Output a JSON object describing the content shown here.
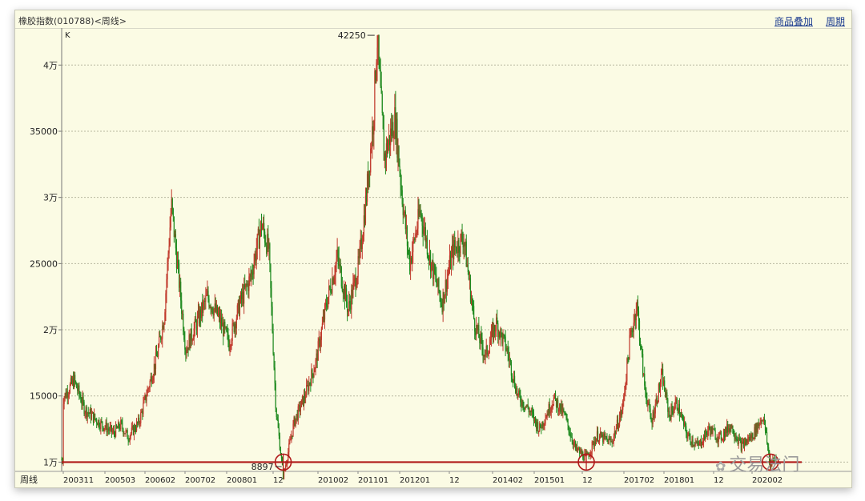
{
  "header": {
    "title": "橡胶指数(010788)<周线>",
    "links": [
      "商品叠加",
      "周期"
    ]
  },
  "watermark": "交易法门",
  "chart_data": {
    "type": "candlestick",
    "title": "橡胶指数(010788)<周线>",
    "unit_label": "K",
    "period_label": "周线",
    "ylim": [
      9300,
      42800
    ],
    "y_ticks": [
      {
        "value": 10000,
        "label": "1万"
      },
      {
        "value": 15000,
        "label": "15000"
      },
      {
        "value": 20000,
        "label": "2万"
      },
      {
        "value": 25000,
        "label": "25000"
      },
      {
        "value": 30000,
        "label": "3万"
      },
      {
        "value": 35000,
        "label": "35000"
      },
      {
        "value": 40000,
        "label": "4万"
      }
    ],
    "x_ticks": [
      "200311",
      "200503",
      "200602",
      "200702",
      "200801",
      "12",
      "201002",
      "201101",
      "201201",
      "12",
      "201402",
      "201501",
      "12",
      "201702",
      "201801",
      "12",
      "202002"
    ],
    "grid": true,
    "annotations": [
      {
        "text": "42250",
        "value": 42250,
        "kind": "high"
      },
      {
        "text": "8897",
        "value": 8897,
        "kind": "low"
      }
    ],
    "support_level": 10000,
    "support_markers": [
      "2008-12 low",
      "2015-12 low",
      "2020-03 low"
    ],
    "colors": {
      "up": "#c0392b",
      "down": "#1f8a1f",
      "support": "#b01818",
      "grid": "#b8b8a0"
    },
    "weekly_close_points": [
      {
        "x": "2003-11",
        "y": 14800
      },
      {
        "x": "2004-02",
        "y": 16200
      },
      {
        "x": "2004-05",
        "y": 14000
      },
      {
        "x": "2004-09",
        "y": 13000
      },
      {
        "x": "2005-01",
        "y": 12200
      },
      {
        "x": "2005-03",
        "y": 12800
      },
      {
        "x": "2005-05",
        "y": 11900
      },
      {
        "x": "2005-08",
        "y": 13000
      },
      {
        "x": "2005-11",
        "y": 16000
      },
      {
        "x": "2006-01",
        "y": 18000
      },
      {
        "x": "2006-03",
        "y": 21000
      },
      {
        "x": "2006-05",
        "y": 29500
      },
      {
        "x": "2006-07",
        "y": 24000
      },
      {
        "x": "2006-09",
        "y": 18500
      },
      {
        "x": "2006-12",
        "y": 20500
      },
      {
        "x": "2007-03",
        "y": 22500
      },
      {
        "x": "2007-06",
        "y": 21000
      },
      {
        "x": "2007-09",
        "y": 19000
      },
      {
        "x": "2007-12",
        "y": 22000
      },
      {
        "x": "2008-03",
        "y": 24000
      },
      {
        "x": "2008-06",
        "y": 28000
      },
      {
        "x": "2008-08",
        "y": 26000
      },
      {
        "x": "2008-10",
        "y": 14000
      },
      {
        "x": "2008-12",
        "y": 8897
      },
      {
        "x": "2009-03",
        "y": 13000
      },
      {
        "x": "2009-06",
        "y": 15000
      },
      {
        "x": "2009-09",
        "y": 17500
      },
      {
        "x": "2009-12",
        "y": 22000
      },
      {
        "x": "2010-03",
        "y": 25500
      },
      {
        "x": "2010-06",
        "y": 21500
      },
      {
        "x": "2010-09",
        "y": 25000
      },
      {
        "x": "2010-11",
        "y": 30000
      },
      {
        "x": "2011-01",
        "y": 36000
      },
      {
        "x": "2011-02",
        "y": 42250
      },
      {
        "x": "2011-04",
        "y": 33000
      },
      {
        "x": "2011-07",
        "y": 36000
      },
      {
        "x": "2011-09",
        "y": 30000
      },
      {
        "x": "2011-11",
        "y": 25000
      },
      {
        "x": "2012-02",
        "y": 29000
      },
      {
        "x": "2012-05",
        "y": 25000
      },
      {
        "x": "2012-08",
        "y": 22000
      },
      {
        "x": "2012-11",
        "y": 26000
      },
      {
        "x": "2013-02",
        "y": 27000
      },
      {
        "x": "2013-05",
        "y": 20500
      },
      {
        "x": "2013-08",
        "y": 18000
      },
      {
        "x": "2013-11",
        "y": 20500
      },
      {
        "x": "2014-02",
        "y": 18500
      },
      {
        "x": "2014-05",
        "y": 15000
      },
      {
        "x": "2014-08",
        "y": 14000
      },
      {
        "x": "2014-11",
        "y": 12500
      },
      {
        "x": "2015-03",
        "y": 14800
      },
      {
        "x": "2015-06",
        "y": 13500
      },
      {
        "x": "2015-09",
        "y": 11000
      },
      {
        "x": "2015-12",
        "y": 10300
      },
      {
        "x": "2016-03",
        "y": 12000
      },
      {
        "x": "2016-07",
        "y": 11500
      },
      {
        "x": "2016-10",
        "y": 14000
      },
      {
        "x": "2016-12",
        "y": 19000
      },
      {
        "x": "2017-02",
        "y": 22000
      },
      {
        "x": "2017-04",
        "y": 16000
      },
      {
        "x": "2017-06",
        "y": 13000
      },
      {
        "x": "2017-09",
        "y": 16500
      },
      {
        "x": "2017-11",
        "y": 13500
      },
      {
        "x": "2018-01",
        "y": 14500
      },
      {
        "x": "2018-04",
        "y": 12000
      },
      {
        "x": "2018-07",
        "y": 11200
      },
      {
        "x": "2018-10",
        "y": 12500
      },
      {
        "x": "2019-01",
        "y": 11800
      },
      {
        "x": "2019-04",
        "y": 12800
      },
      {
        "x": "2019-07",
        "y": 11200
      },
      {
        "x": "2019-10",
        "y": 12000
      },
      {
        "x": "2020-01",
        "y": 13500
      },
      {
        "x": "2020-03",
        "y": 9800
      },
      {
        "x": "2020-04",
        "y": 10200
      }
    ]
  }
}
